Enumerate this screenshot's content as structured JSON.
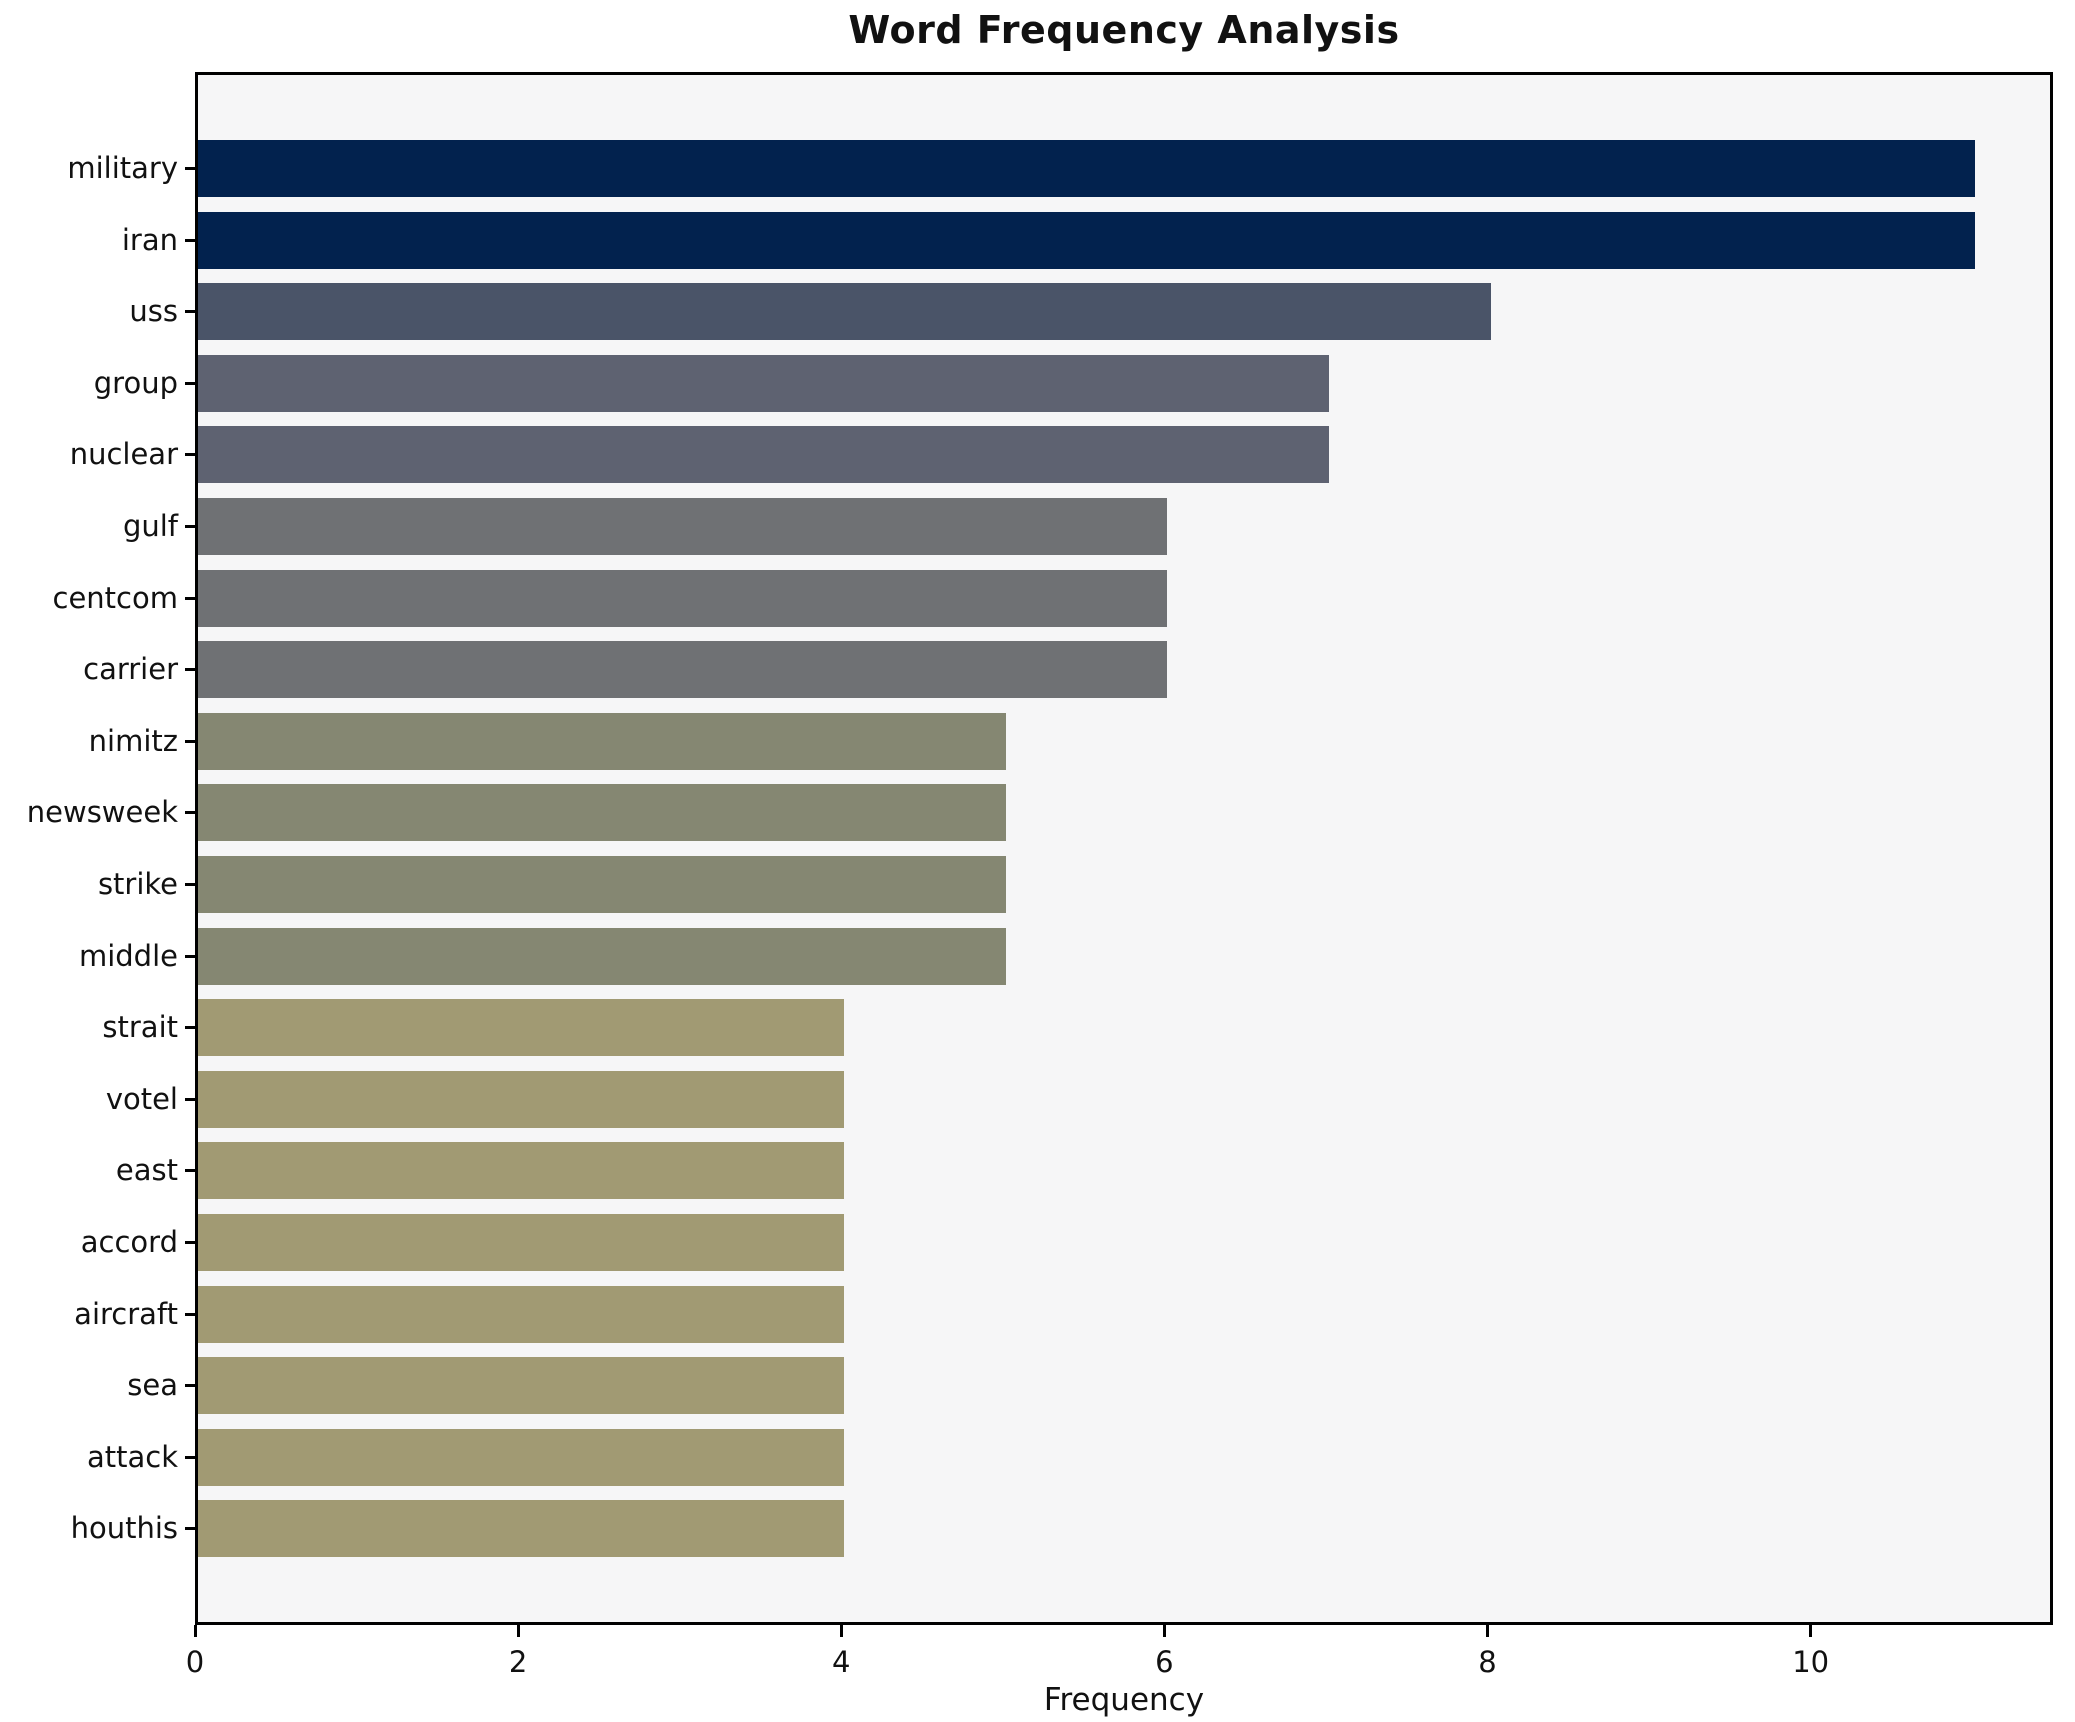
{
  "chart_data": {
    "type": "bar",
    "orientation": "horizontal",
    "title": "Word Frequency Analysis",
    "xlabel": "Frequency",
    "ylabel": "",
    "categories": [
      "military",
      "iran",
      "uss",
      "group",
      "nuclear",
      "gulf",
      "centcom",
      "carrier",
      "nimitz",
      "newsweek",
      "strike",
      "middle",
      "strait",
      "votel",
      "east",
      "accord",
      "aircraft",
      "sea",
      "attack",
      "houthis"
    ],
    "values": [
      11,
      11,
      8,
      7,
      7,
      6,
      6,
      6,
      5,
      5,
      5,
      5,
      4,
      4,
      4,
      4,
      4,
      4,
      4,
      4
    ],
    "bar_colors": [
      "#02224e",
      "#02224e",
      "#4a5468",
      "#5e6271",
      "#5e6271",
      "#6f7174",
      "#6f7174",
      "#6f7174",
      "#858772",
      "#858772",
      "#858772",
      "#858772",
      "#a19a73",
      "#a19a73",
      "#a19a73",
      "#a19a73",
      "#a19a73",
      "#a19a73",
      "#a19a73",
      "#a19a73"
    ],
    "xlim": [
      0,
      11.5
    ],
    "xticks": [
      0,
      2,
      4,
      6,
      8,
      10
    ],
    "grid": false,
    "legend": null,
    "plot_bg": "#f6f6f7",
    "fig_bg": "#ffffff",
    "spine_color": "#000000"
  }
}
